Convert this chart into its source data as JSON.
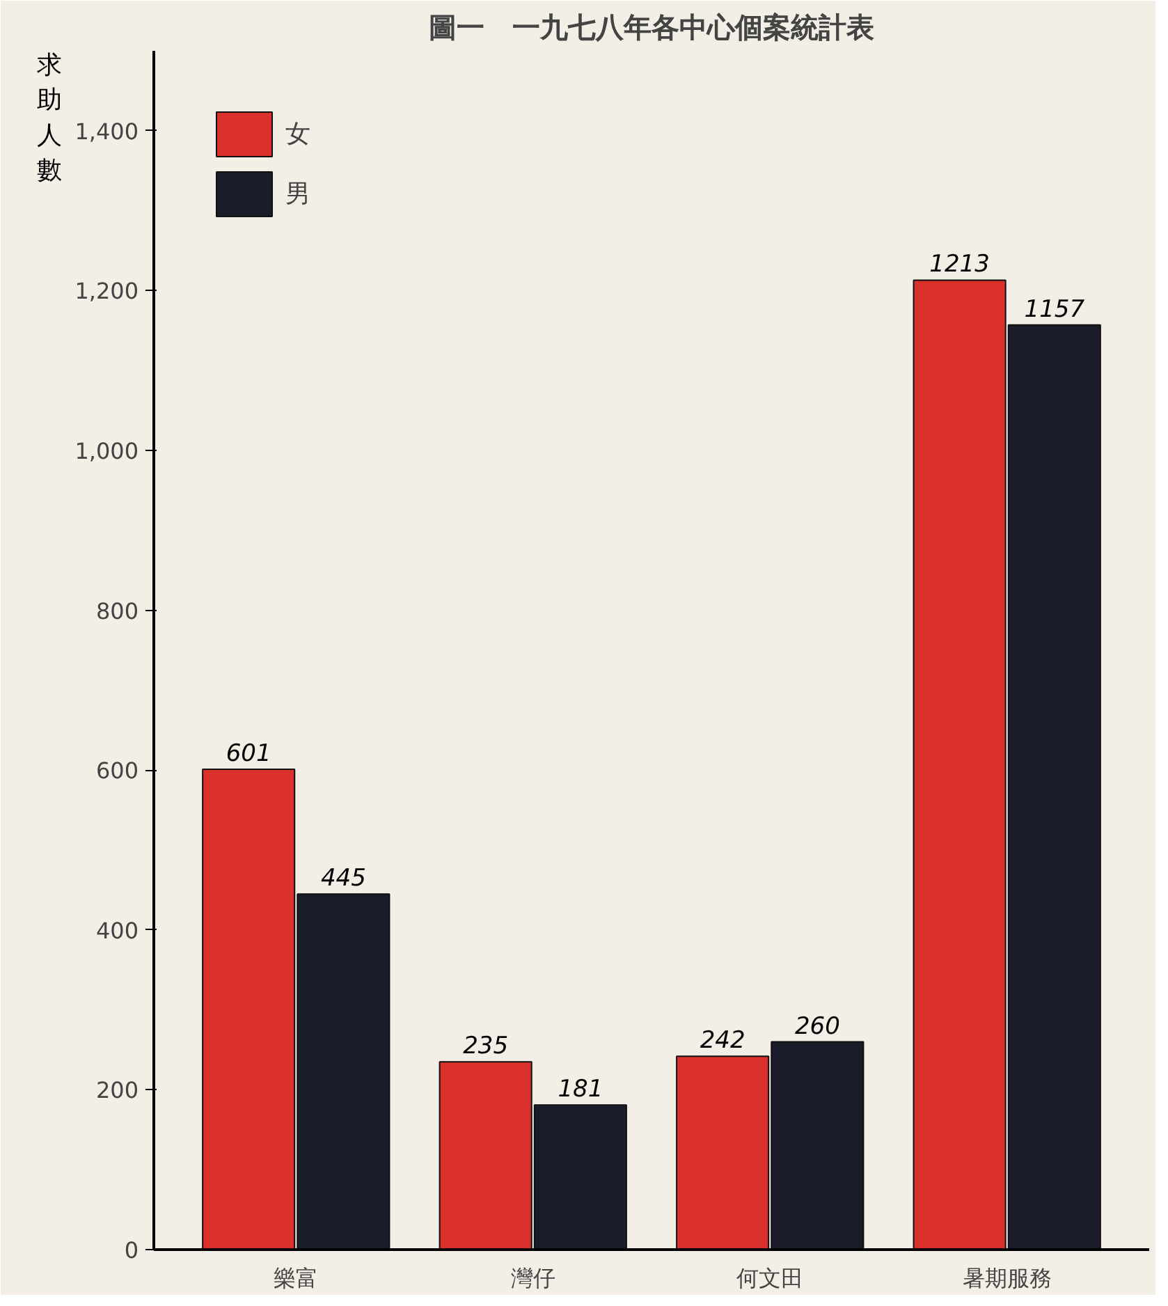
{
  "chart_data": {
    "type": "bar",
    "title": "圖一　一九七八年各中心個案統計表",
    "ylabel": "求助人數",
    "categories": [
      "樂富",
      "灣仔",
      "何文田",
      "暑期服務"
    ],
    "series": [
      {
        "name": "女",
        "color": "#d9302c",
        "values": [
          601,
          235,
          242,
          1213
        ]
      },
      {
        "name": "男",
        "color": "#1b1c2a",
        "values": [
          445,
          181,
          260,
          1157
        ]
      }
    ],
    "ylim": [
      0,
      1500
    ],
    "yticks": [
      0,
      200,
      400,
      600,
      800,
      {
        "value": 1000,
        "label": "1,000"
      },
      {
        "value": 1200,
        "label": "1,200"
      },
      {
        "value": 1400,
        "label": "1,400"
      }
    ],
    "data_labels": true,
    "grid": false,
    "legend": "top left"
  }
}
